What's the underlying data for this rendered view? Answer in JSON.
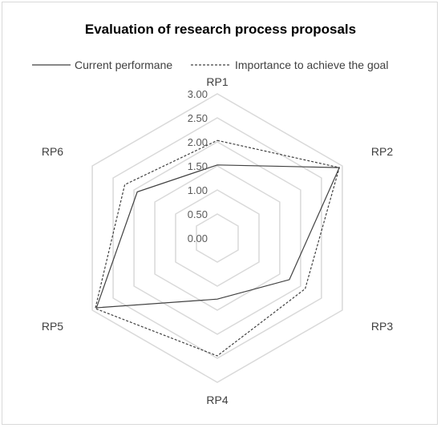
{
  "chart_data": {
    "type": "radar",
    "title": "Evaluation of research process proposals",
    "categories": [
      "RP1",
      "RP2",
      "RP3",
      "RP4",
      "RP5",
      "RP6"
    ],
    "series": [
      {
        "name": "Current performane",
        "values": [
          1.52,
          2.93,
          1.73,
          1.27,
          2.9,
          1.92
        ],
        "style": "solid",
        "color": "#404040"
      },
      {
        "name": "Importance to achieve the goal",
        "values": [
          2.03,
          2.93,
          2.11,
          2.45,
          2.93,
          2.22
        ],
        "style": "dashed",
        "color": "#404040"
      }
    ],
    "ticks": [
      "0.00",
      "0.50",
      "1.00",
      "1.50",
      "2.00",
      "2.50",
      "3.00"
    ],
    "rmin": 0,
    "rmax": 3.0,
    "grid_color": "#d9d9d9",
    "legend_position": "top"
  }
}
